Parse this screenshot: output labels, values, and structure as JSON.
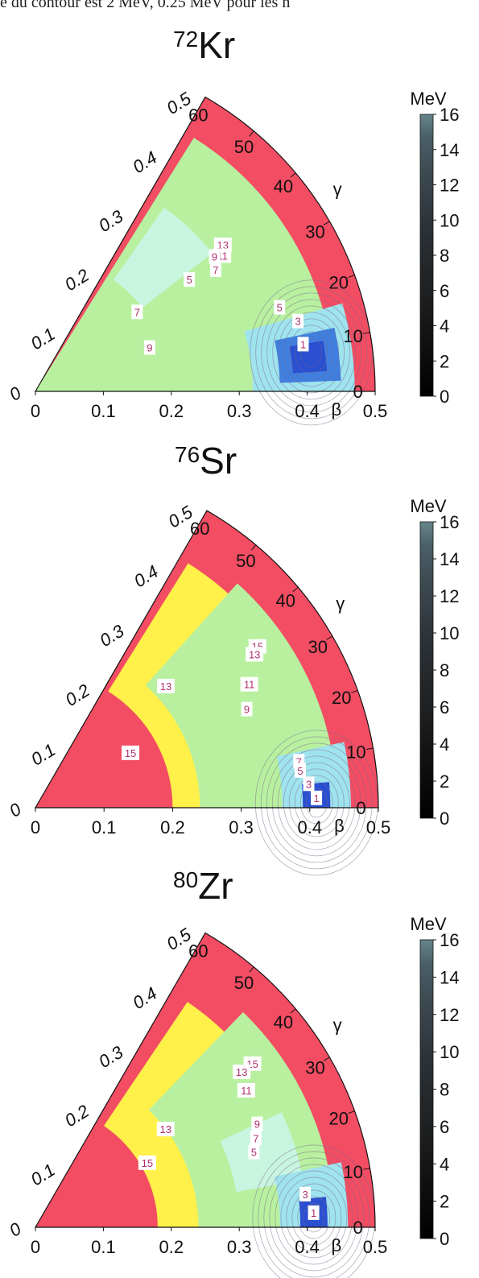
{
  "caption": "e du contour est 2 MeV, 0.25 MeV pour les n",
  "chart_data": [
    {
      "type": "heatmap",
      "nucleus": {
        "mass": "72",
        "symbol": "Kr"
      },
      "title": "72Kr",
      "xlabel": "β",
      "angle_label": "γ",
      "beta_ticks": [
        "0",
        "0.1",
        "0.2",
        "0.3",
        "0.4",
        "0.5"
      ],
      "radial_ticks": [
        "0",
        "0.1",
        "0.2",
        "0.3",
        "0.4",
        "0.5"
      ],
      "gamma_ticks": [
        "0",
        "10",
        "20",
        "30",
        "40",
        "50",
        "60"
      ],
      "colorbar": {
        "unit": "MeV",
        "min": 0,
        "max": 16,
        "ticks": [
          "0",
          "2",
          "4",
          "6",
          "8",
          "10",
          "12",
          "14",
          "16"
        ]
      },
      "minimum": {
        "beta": 0.41,
        "gamma": 8
      },
      "contour_labels": [
        {
          "text": "13",
          "beta": 0.35,
          "gamma": 38
        },
        {
          "text": "11",
          "beta": 0.34,
          "gamma": 36
        },
        {
          "text": "9",
          "beta": 0.33,
          "gamma": 37
        },
        {
          "text": "7",
          "beta": 0.32,
          "gamma": 34
        },
        {
          "text": "5",
          "beta": 0.28,
          "gamma": 36
        },
        {
          "text": "7",
          "beta": 0.19,
          "gamma": 38
        },
        {
          "text": "9",
          "beta": 0.18,
          "gamma": 21
        },
        {
          "text": "5",
          "beta": 0.38,
          "gamma": 19
        },
        {
          "text": "3",
          "beta": 0.4,
          "gamma": 15
        },
        {
          "text": "1",
          "beta": 0.4,
          "gamma": 10
        }
      ]
    },
    {
      "type": "heatmap",
      "nucleus": {
        "mass": "76",
        "symbol": "Sr"
      },
      "title": "76Sr",
      "xlabel": "β",
      "angle_label": "γ",
      "beta_ticks": [
        "0",
        "0.1",
        "0.2",
        "0.3",
        "0.4",
        "0.5"
      ],
      "radial_ticks": [
        "0",
        "0.1",
        "0.2",
        "0.3",
        "0.4",
        "0.5"
      ],
      "gamma_ticks": [
        "0",
        "10",
        "20",
        "30",
        "40",
        "50",
        "60"
      ],
      "colorbar": {
        "unit": "MeV",
        "min": 0,
        "max": 16,
        "ticks": [
          "0",
          "2",
          "4",
          "6",
          "8",
          "10",
          "12",
          "14",
          "16"
        ]
      },
      "minimum": {
        "beta": 0.41,
        "gamma": 1
      },
      "contour_labels": [
        {
          "text": "15",
          "beta": 0.4,
          "gamma": 36
        },
        {
          "text": "13",
          "beta": 0.39,
          "gamma": 35
        },
        {
          "text": "13",
          "beta": 0.26,
          "gamma": 43
        },
        {
          "text": "11",
          "beta": 0.36,
          "gamma": 30
        },
        {
          "text": "9",
          "beta": 0.34,
          "gamma": 25
        },
        {
          "text": "15",
          "beta": 0.16,
          "gamma": 30
        },
        {
          "text": "7",
          "beta": 0.39,
          "gamma": 10
        },
        {
          "text": "5",
          "beta": 0.39,
          "gamma": 8
        },
        {
          "text": "3",
          "beta": 0.4,
          "gamma": 5
        },
        {
          "text": "1",
          "beta": 0.41,
          "gamma": 2
        }
      ]
    },
    {
      "type": "heatmap",
      "nucleus": {
        "mass": "80",
        "symbol": "Zr"
      },
      "title": "80Zr",
      "xlabel": "β",
      "angle_label": "γ",
      "beta_ticks": [
        "0",
        "0.1",
        "0.2",
        "0.3",
        "0.4",
        "0.5"
      ],
      "radial_ticks": [
        "0",
        "0.1",
        "0.2",
        "0.3",
        "0.4",
        "0.5"
      ],
      "gamma_ticks": [
        "0",
        "10",
        "20",
        "30",
        "40",
        "50",
        "60"
      ],
      "colorbar": {
        "unit": "MeV",
        "min": 0,
        "max": 16,
        "ticks": [
          "0",
          "2",
          "4",
          "6",
          "8",
          "10",
          "12",
          "14",
          "16"
        ]
      },
      "minimum": {
        "beta": 0.41,
        "gamma": 2
      },
      "contour_labels": [
        {
          "text": "15",
          "beta": 0.4,
          "gamma": 37
        },
        {
          "text": "13",
          "beta": 0.38,
          "gamma": 37
        },
        {
          "text": "11",
          "beta": 0.37,
          "gamma": 33
        },
        {
          "text": "13",
          "beta": 0.24,
          "gamma": 37
        },
        {
          "text": "15",
          "beta": 0.19,
          "gamma": 30
        },
        {
          "text": "9",
          "beta": 0.36,
          "gamma": 25
        },
        {
          "text": "7",
          "beta": 0.35,
          "gamma": 22
        },
        {
          "text": "5",
          "beta": 0.34,
          "gamma": 19
        },
        {
          "text": "3",
          "beta": 0.4,
          "gamma": 7
        },
        {
          "text": "1",
          "beta": 0.41,
          "gamma": 3
        }
      ]
    }
  ]
}
